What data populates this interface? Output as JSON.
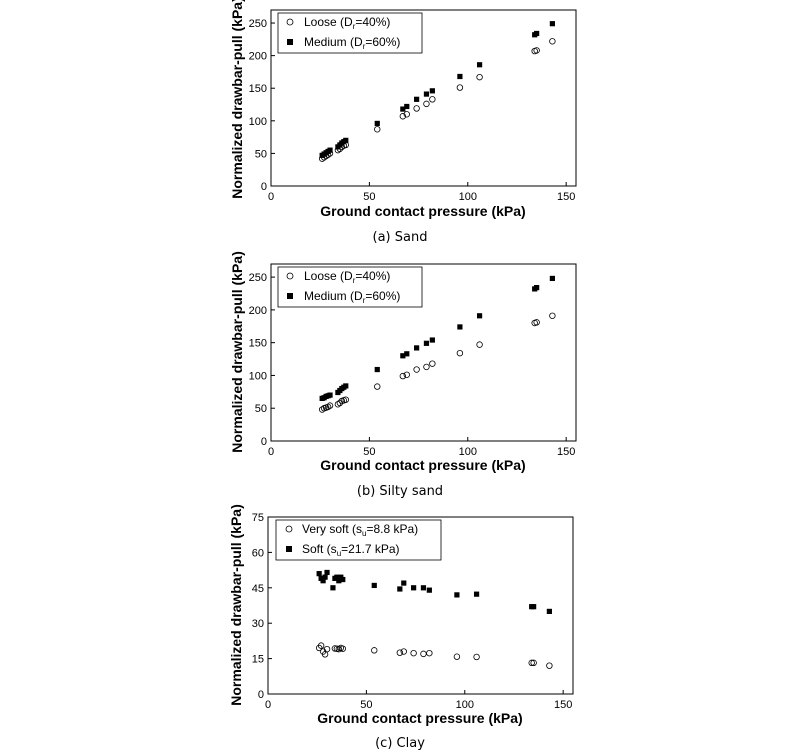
{
  "chart_data": [
    {
      "type": "scatter",
      "caption": "(a) Sand",
      "xlabel": "Ground contact pressure (kPa)",
      "ylabel": "Normalized drawbar-pull (kPa)",
      "xlim": [
        0,
        155
      ],
      "ylim": [
        0,
        270
      ],
      "xticks": [
        0,
        50,
        100,
        150
      ],
      "yticks": [
        0,
        50,
        100,
        150,
        200,
        250
      ],
      "grid": false,
      "legend_position": "top-left",
      "series": [
        {
          "name_main": "Loose (D",
          "name_sub": "r",
          "name_end": "=40%)",
          "marker": "open-circle",
          "points": [
            [
              26,
              42
            ],
            [
              27,
              44
            ],
            [
              28,
              46
            ],
            [
              29,
              48
            ],
            [
              30,
              50
            ],
            [
              34,
              55
            ],
            [
              35,
              57
            ],
            [
              36,
              60
            ],
            [
              37,
              62
            ],
            [
              38,
              63
            ],
            [
              54,
              87
            ],
            [
              67,
              107
            ],
            [
              69,
              110
            ],
            [
              74,
              119
            ],
            [
              79,
              126
            ],
            [
              82,
              133
            ],
            [
              96,
              151
            ],
            [
              106,
              167
            ],
            [
              134,
              207
            ],
            [
              135,
              208
            ],
            [
              143,
              222
            ]
          ]
        },
        {
          "name_main": "Medium (D",
          "name_sub": "r",
          "name_end": "=60%)",
          "marker": "filled-square",
          "points": [
            [
              26,
              47
            ],
            [
              27,
              49
            ],
            [
              28,
              51
            ],
            [
              29,
              53
            ],
            [
              30,
              55
            ],
            [
              34,
              60
            ],
            [
              35,
              63
            ],
            [
              36,
              66
            ],
            [
              37,
              68
            ],
            [
              38,
              70
            ],
            [
              54,
              96
            ],
            [
              67,
              118
            ],
            [
              69,
              122
            ],
            [
              74,
              133
            ],
            [
              79,
              141
            ],
            [
              82,
              146
            ],
            [
              96,
              168
            ],
            [
              106,
              186
            ],
            [
              134,
              232
            ],
            [
              135,
              234
            ],
            [
              143,
              249
            ]
          ]
        }
      ]
    },
    {
      "type": "scatter",
      "caption": "(b) Silty sand",
      "xlabel": "Ground contact pressure (kPa)",
      "ylabel": "Normalized drawbar-pull (kPa)",
      "xlim": [
        0,
        155
      ],
      "ylim": [
        0,
        270
      ],
      "xticks": [
        0,
        50,
        100,
        150
      ],
      "yticks": [
        0,
        50,
        100,
        150,
        200,
        250
      ],
      "grid": false,
      "legend_position": "top-left",
      "series": [
        {
          "name_main": "Loose (D",
          "name_sub": "r",
          "name_end": "=40%)",
          "marker": "open-circle",
          "points": [
            [
              26,
              48
            ],
            [
              27,
              50
            ],
            [
              28,
              51
            ],
            [
              29,
              52
            ],
            [
              30,
              54
            ],
            [
              34,
              56
            ],
            [
              35,
              58
            ],
            [
              36,
              61
            ],
            [
              37,
              62
            ],
            [
              38,
              63
            ],
            [
              54,
              83
            ],
            [
              67,
              99
            ],
            [
              69,
              101
            ],
            [
              74,
              109
            ],
            [
              79,
              113
            ],
            [
              82,
              118
            ],
            [
              96,
              134
            ],
            [
              106,
              147
            ],
            [
              134,
              180
            ],
            [
              135,
              181
            ],
            [
              143,
              191
            ]
          ]
        },
        {
          "name_main": "Medium (D",
          "name_sub": "r",
          "name_end": "=60%)",
          "marker": "filled-square",
          "points": [
            [
              26,
              65
            ],
            [
              27,
              66
            ],
            [
              28,
              68
            ],
            [
              29,
              69
            ],
            [
              30,
              70
            ],
            [
              34,
              74
            ],
            [
              35,
              77
            ],
            [
              36,
              80
            ],
            [
              37,
              82
            ],
            [
              38,
              84
            ],
            [
              54,
              109
            ],
            [
              67,
              130
            ],
            [
              69,
              133
            ],
            [
              74,
              142
            ],
            [
              79,
              149
            ],
            [
              82,
              154
            ],
            [
              96,
              174
            ],
            [
              106,
              191
            ],
            [
              134,
              232
            ],
            [
              135,
              234
            ],
            [
              143,
              248
            ]
          ]
        }
      ]
    },
    {
      "type": "scatter",
      "caption": "(c) Clay",
      "xlabel": "Ground contact pressure (kPa)",
      "ylabel": "Normalized drawbar-pull (kPa)",
      "xlim": [
        0,
        155
      ],
      "ylim": [
        0,
        75
      ],
      "xticks": [
        0,
        50,
        100,
        150
      ],
      "yticks": [
        0,
        15,
        30,
        45,
        60,
        75
      ],
      "grid": false,
      "legend_position": "top-left",
      "series": [
        {
          "name_main": "Very soft (s",
          "name_sub": "u",
          "name_end": "=8.8 kPa)",
          "marker": "open-circle",
          "points": [
            [
              26,
              19.5
            ],
            [
              27,
              20.5
            ],
            [
              28,
              18
            ],
            [
              29,
              16.8
            ],
            [
              30,
              19
            ],
            [
              34,
              19.3
            ],
            [
              35,
              19.2
            ],
            [
              36,
              19
            ],
            [
              37,
              19.5
            ],
            [
              38,
              19.2
            ],
            [
              54,
              18.5
            ],
            [
              67,
              17.5
            ],
            [
              69,
              18
            ],
            [
              74,
              17.3
            ],
            [
              79,
              17
            ],
            [
              82,
              17.3
            ],
            [
              96,
              15.8
            ],
            [
              106,
              15.7
            ],
            [
              134,
              13.2
            ],
            [
              135,
              13.2
            ],
            [
              143,
              12
            ]
          ]
        },
        {
          "name_main": "Soft (s",
          "name_sub": "u",
          "name_end": "=21.7 kPa)",
          "marker": "filled-square",
          "points": [
            [
              26,
              51
            ],
            [
              27,
              49
            ],
            [
              28,
              48
            ],
            [
              29,
              49.5
            ],
            [
              30,
              51.5
            ],
            [
              33,
              45
            ],
            [
              34,
              49
            ],
            [
              35,
              49.5
            ],
            [
              36,
              48
            ],
            [
              37,
              49.5
            ],
            [
              38,
              48.5
            ],
            [
              54,
              46
            ],
            [
              67,
              44.5
            ],
            [
              69,
              47
            ],
            [
              74,
              45
            ],
            [
              79,
              45
            ],
            [
              82,
              44
            ],
            [
              96,
              42
            ],
            [
              106,
              42.3
            ],
            [
              134,
              37
            ],
            [
              135,
              37
            ],
            [
              143,
              35
            ]
          ]
        }
      ]
    }
  ]
}
